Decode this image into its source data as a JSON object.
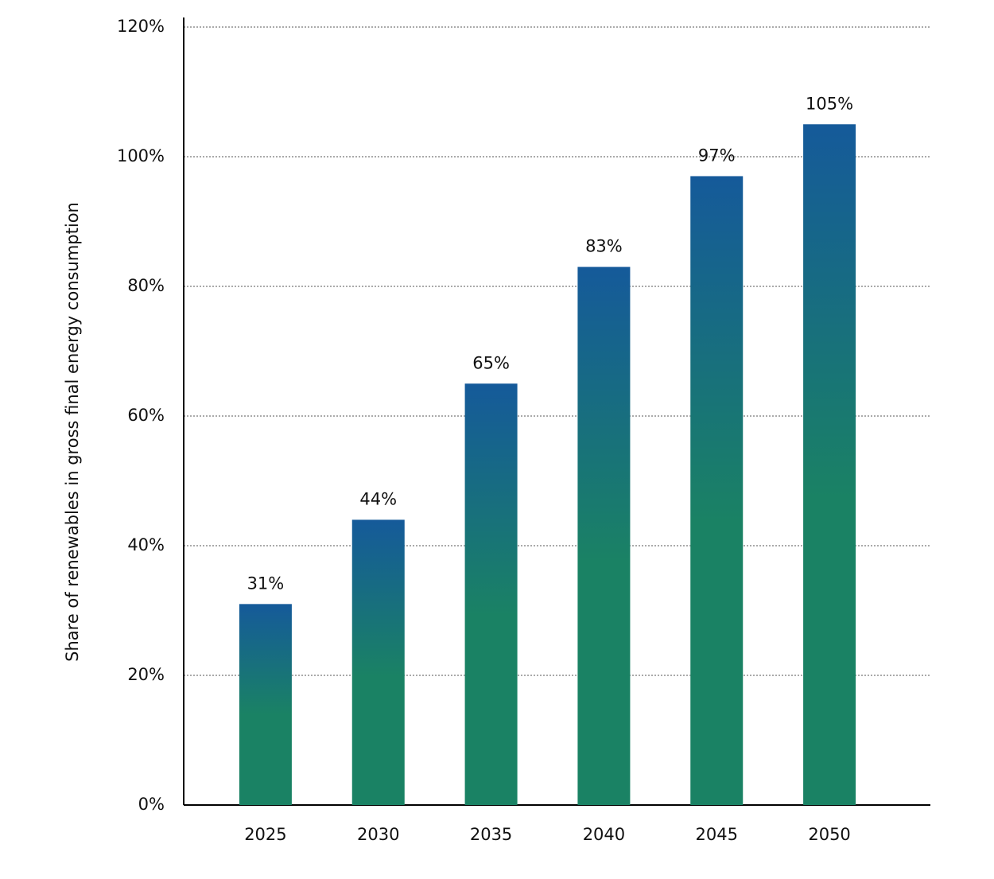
{
  "chart_data": {
    "type": "bar",
    "y_axis_label": "Share of renewables in gross final energy consumption",
    "categories": [
      "2025",
      "2030",
      "2035",
      "2040",
      "2045",
      "2050"
    ],
    "values": [
      31,
      44,
      65,
      83,
      97,
      105
    ],
    "value_labels": [
      "31%",
      "44%",
      "65%",
      "83%",
      "97%",
      "105%"
    ],
    "colors": [
      "#155a9a",
      "#1a8264"
    ],
    "ylim": [
      0,
      120
    ],
    "yticks": [
      {
        "value": 0,
        "label": "0%"
      },
      {
        "value": 20,
        "label": "20%"
      },
      {
        "value": 40,
        "label": "40%"
      },
      {
        "value": 60,
        "label": "60%"
      },
      {
        "value": 80,
        "label": "80%"
      },
      {
        "value": 100,
        "label": "100%"
      },
      {
        "value": 120,
        "label": "120%"
      }
    ],
    "grid": true
  }
}
